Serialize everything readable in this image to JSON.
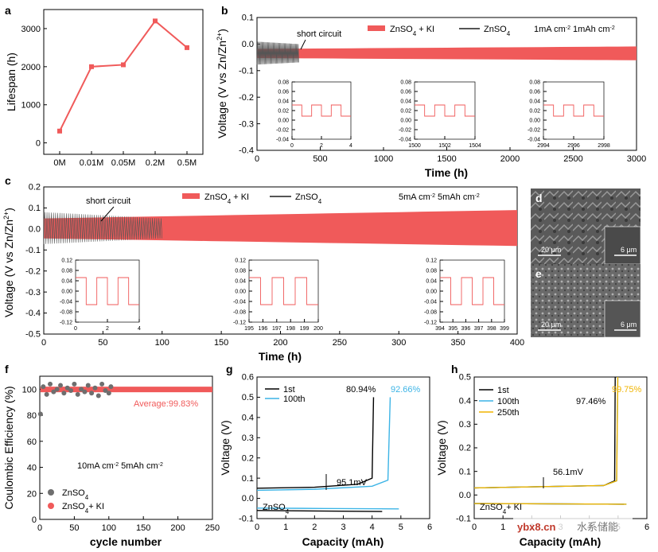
{
  "colors": {
    "red": "#f05a5a",
    "gray": "#6e6e6e",
    "blue": "#3cb4e6",
    "orange": "#f0b400",
    "black": "#000000"
  },
  "chart_data": [
    {
      "id": "a",
      "type": "line",
      "panel_label": "a",
      "categories": [
        "0M",
        "0.01M",
        "0.05M",
        "0.2M",
        "0.5M"
      ],
      "values": [
        310,
        2000,
        2050,
        3200,
        2500
      ],
      "ylabel": "Lifespan (h)",
      "yticks": [
        "0",
        "1000",
        "2000",
        "3000"
      ],
      "ylim": [
        -300,
        3500
      ]
    },
    {
      "id": "b",
      "type": "line",
      "panel_label": "b",
      "xlabel": "Time (h)",
      "ylabel": "Voltage (V vs Zn/Zn2+)",
      "xlim": [
        0,
        3000
      ],
      "ylim": [
        -0.4,
        0.15
      ],
      "xticks": [
        "0",
        "500",
        "1000",
        "1500",
        "2000",
        "2500",
        "3000"
      ],
      "yticks": [
        "0.1",
        "0.0",
        "-0.1",
        "-0.2",
        "-0.3",
        "-0.4"
      ],
      "legend": [
        "ZnSO4 + KI",
        "ZnSO4"
      ],
      "condition": "1mA cm-2   1mAh cm-2",
      "annotation": "short circuit",
      "series": [
        {
          "name": "ZnSO4 + KI",
          "x": [
            0,
            3000
          ],
          "amplitude": [
            0.02,
            0.03
          ]
        },
        {
          "name": "ZnSO4",
          "x": [
            0,
            330
          ],
          "amplitude": [
            0.05,
            0.04
          ]
        }
      ],
      "insets": [
        {
          "xticks": [
            "0",
            "2",
            "4"
          ],
          "yticks": [
            "0.08",
            "0.06",
            "0.04",
            "0.02",
            "0.00",
            "-0.02",
            "-0.04"
          ]
        },
        {
          "xticks": [
            "1500",
            "1502",
            "1504"
          ],
          "yticks": [
            "0.08",
            "0.06",
            "0.04",
            "0.02",
            "0.00",
            "-0.02",
            "-0.04"
          ]
        },
        {
          "xticks": [
            "2994",
            "2996",
            "2998"
          ],
          "yticks": [
            "0.08",
            "0.06",
            "0.04",
            "0.02",
            "0.00",
            "-0.02",
            "-0.04"
          ]
        }
      ]
    },
    {
      "id": "c",
      "type": "line",
      "panel_label": "c",
      "xlabel": "Time (h)",
      "ylabel": "Voltage (V vs Zn/Zn2+)",
      "xlim": [
        0,
        400
      ],
      "ylim": [
        -0.5,
        0.2
      ],
      "xticks": [
        "0",
        "50",
        "100",
        "150",
        "200",
        "250",
        "300",
        "350",
        "400"
      ],
      "yticks": [
        "0.2",
        "0.1",
        "0.0",
        "-0.1",
        "-0.2",
        "-0.3",
        "-0.4",
        "-0.5"
      ],
      "legend": [
        "ZnSO4 + KI",
        "ZnSO4"
      ],
      "condition": "5mA cm-2   5mAh cm-2",
      "annotation": "short circuit",
      "series": [
        {
          "name": "ZnSO4 + KI",
          "x": [
            0,
            400
          ],
          "amplitude": [
            0.05,
            0.09
          ]
        },
        {
          "name": "ZnSO4",
          "x": [
            0,
            100
          ],
          "amplitude": [
            0.08,
            0.05
          ]
        }
      ],
      "insets": [
        {
          "xticks": [
            "0",
            "2",
            "4"
          ],
          "yticks": [
            "0.12",
            "0.08",
            "0.04",
            "0.00",
            "-0.04",
            "-0.08",
            "-0.12"
          ]
        },
        {
          "xticks": [
            "195",
            "196",
            "197",
            "198",
            "199",
            "200"
          ],
          "yticks": [
            "0.12",
            "0.08",
            "0.04",
            "0.00",
            "-0.04",
            "-0.08",
            "-0.12"
          ]
        },
        {
          "xticks": [
            "394",
            "395",
            "396",
            "397",
            "398",
            "399"
          ],
          "yticks": [
            "0.12",
            "0.08",
            "0.04",
            "0.00",
            "-0.04",
            "-0.08",
            "-0.12"
          ]
        }
      ]
    },
    {
      "id": "f",
      "type": "scatter",
      "panel_label": "f",
      "xlabel": "cycle number",
      "ylabel": "Coulombic Efficiency (%)",
      "xlim": [
        0,
        250
      ],
      "ylim": [
        0,
        110
      ],
      "xticks": [
        "0",
        "50",
        "100",
        "150",
        "200",
        "250"
      ],
      "yticks": [
        "0",
        "20",
        "40",
        "60",
        "80",
        "100"
      ],
      "legend": [
        "ZnSO4",
        "ZnSO4+ KI"
      ],
      "condition": "10mA cm-2   5mAh cm-2",
      "annotation": "Average:99.83%",
      "series": [
        {
          "name": "ZnSO4",
          "x": [
            1,
            5,
            10,
            15,
            20,
            25,
            30,
            35,
            40,
            45,
            50,
            55,
            60,
            65,
            70,
            75,
            80,
            85,
            90,
            95,
            100,
            103
          ],
          "y": [
            81,
            102,
            96,
            104,
            98,
            100,
            103,
            97,
            101,
            99,
            104,
            96,
            100,
            98,
            103,
            97,
            101,
            95,
            104,
            99,
            97,
            102
          ]
        },
        {
          "name": "ZnSO4+ KI",
          "x": [
            1,
            250
          ],
          "y": [
            99.83,
            99.83
          ]
        }
      ]
    },
    {
      "id": "g",
      "type": "line",
      "panel_label": "g",
      "xlabel": "Capacity (mAh)",
      "ylabel": "Voltage (V)",
      "xlim": [
        0,
        6
      ],
      "ylim": [
        -0.1,
        0.6
      ],
      "xticks": [
        "0",
        "1",
        "2",
        "3",
        "4",
        "5",
        "6"
      ],
      "yticks": [
        "-0.1",
        "0.0",
        "0.1",
        "0.2",
        "0.3",
        "0.4",
        "0.5",
        "0.6"
      ],
      "legend": [
        "1st",
        "100th"
      ],
      "labels": [
        "80.94%",
        "92.66%",
        "95.1mV",
        "ZnSO4"
      ],
      "series": [
        {
          "name": "1st",
          "x": [
            0,
            2,
            3.5,
            4.0,
            4.05
          ],
          "y": [
            0.05,
            0.055,
            0.07,
            0.1,
            0.5
          ]
        },
        {
          "name": "100th",
          "x": [
            0,
            2,
            4,
            4.55,
            4.63
          ],
          "y": [
            0.04,
            0.045,
            0.06,
            0.09,
            0.5
          ]
        }
      ]
    },
    {
      "id": "h",
      "type": "line",
      "panel_label": "h",
      "xlabel": "Capacity (mAh)",
      "ylabel": "Voltage (V)",
      "xlim": [
        0,
        6
      ],
      "ylim": [
        -0.1,
        0.5
      ],
      "xticks": [
        "0",
        "1",
        "2",
        "3",
        "4",
        "5",
        "6"
      ],
      "yticks": [
        "-0.1",
        "0.0",
        "0.1",
        "0.2",
        "0.3",
        "0.4",
        "0.5"
      ],
      "legend": [
        "1st",
        "100th",
        "250th"
      ],
      "labels": [
        "97.46%",
        "99.75%",
        "56.1mV",
        "ZnSO4+ KI"
      ],
      "series": [
        {
          "name": "1st",
          "x": [
            0,
            4.5,
            4.88,
            4.9
          ],
          "y": [
            0.03,
            0.04,
            0.06,
            0.5
          ]
        },
        {
          "name": "100th",
          "x": [
            0,
            4.5,
            4.95,
            4.99
          ],
          "y": [
            0.03,
            0.04,
            0.06,
            0.5
          ]
        },
        {
          "name": "250th",
          "x": [
            0,
            4.5,
            4.95,
            4.99
          ],
          "y": [
            0.03,
            0.04,
            0.06,
            0.5
          ]
        }
      ]
    }
  ],
  "micrographs": [
    {
      "label": "d",
      "scale_left": "20 μm",
      "scale_right": "6 μm"
    },
    {
      "label": "e",
      "scale_left": "20 μm",
      "scale_right": "6 μm"
    }
  ],
  "watermark": {
    "text": "ybx8.cn",
    "brand": "水系储能"
  }
}
